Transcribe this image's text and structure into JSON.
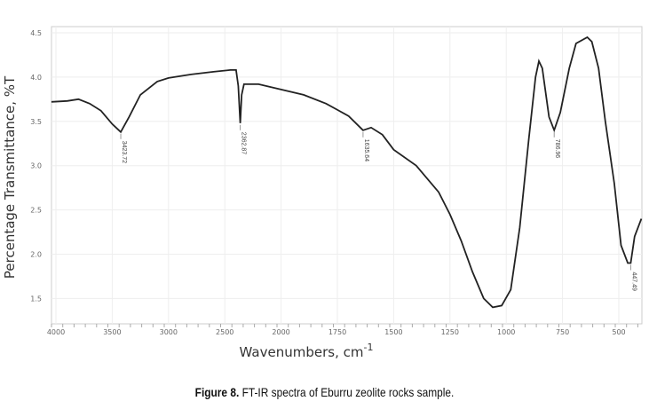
{
  "chart_data": {
    "type": "line",
    "xlabel": "Wavenumbers, cm",
    "xlabel_sup": "-1",
    "ylabel": "Percentage Transmittance, %T",
    "x_ticks": [
      4000,
      3500,
      3000,
      2500,
      2000,
      1750,
      1500,
      1250,
      1000,
      750,
      500
    ],
    "y_ticks": [
      "4.5",
      "4.0",
      "3.5",
      "3.0",
      "2.5",
      "2.0",
      "1.5"
    ],
    "ylim": [
      1.2,
      4.6
    ],
    "x_reversed": true,
    "grid": true,
    "line_color": "#222222",
    "series": [
      {
        "x": [
          4040,
          3900,
          3800,
          3700,
          3600,
          3500,
          3424,
          3350,
          3250,
          3100,
          3000,
          2800,
          2600,
          2450,
          2400,
          2380,
          2363,
          2350,
          2330,
          2200,
          2000,
          1900,
          1800,
          1700,
          1636,
          1600,
          1550,
          1500,
          1400,
          1300,
          1250,
          1200,
          1150,
          1100,
          1060,
          1020,
          980,
          940,
          900,
          870,
          855,
          840,
          810,
          787,
          760,
          720,
          690,
          640,
          620,
          590,
          560,
          520,
          490,
          460,
          447,
          430,
          400
        ],
        "y": [
          3.72,
          3.73,
          3.75,
          3.7,
          3.62,
          3.47,
          3.38,
          3.55,
          3.8,
          3.95,
          3.99,
          4.03,
          4.06,
          4.08,
          4.08,
          3.9,
          3.48,
          3.8,
          3.92,
          3.92,
          3.86,
          3.8,
          3.7,
          3.56,
          3.4,
          3.43,
          3.35,
          3.18,
          3.0,
          2.7,
          2.45,
          2.15,
          1.8,
          1.5,
          1.4,
          1.42,
          1.6,
          2.3,
          3.3,
          4.0,
          4.18,
          4.1,
          3.55,
          3.4,
          3.6,
          4.1,
          4.38,
          4.45,
          4.4,
          4.1,
          3.5,
          2.8,
          2.1,
          1.9,
          1.9,
          2.2,
          2.4
        ]
      }
    ],
    "annotations": [
      {
        "x": 3424,
        "y": 3.38,
        "label": "3423.72"
      },
      {
        "x": 2363,
        "y": 3.48,
        "label": "2362.87"
      },
      {
        "x": 1636,
        "y": 3.4,
        "label": "1635.64"
      },
      {
        "x": 787,
        "y": 3.4,
        "label": "786.96"
      },
      {
        "x": 447,
        "y": 1.9,
        "label": "447.49"
      }
    ]
  },
  "caption": {
    "label": "Figure 8.",
    "text": " FT-IR spectra of Eburru zeolite rocks sample."
  }
}
